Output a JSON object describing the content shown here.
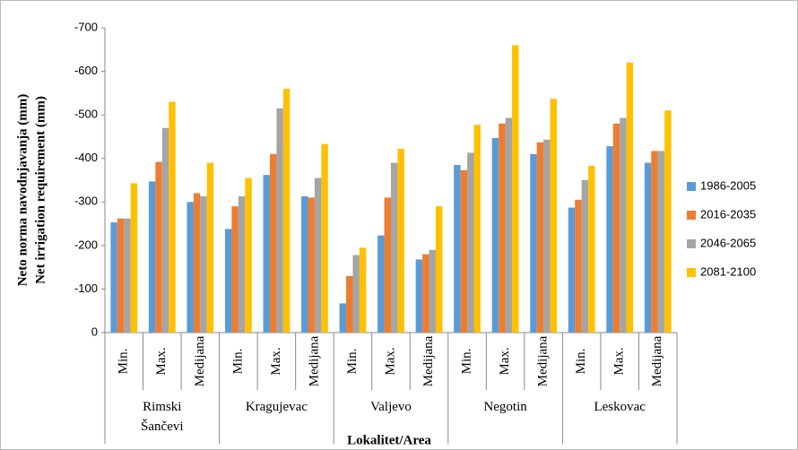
{
  "chart_data": {
    "type": "bar",
    "y_label_lines": [
      "Neto norma navodnjavanja (mm)",
      "Net irrigation requirement  (mm)"
    ],
    "x_label": "Lokalitet/Area",
    "categories": [
      "Min.",
      "Max.",
      "Medijana",
      "Min.",
      "Max.",
      "Medijana",
      "Min.",
      "Max.",
      "Medijana",
      "Min.",
      "Max.",
      "Medijana",
      "Min.",
      "Max.",
      "Medijana"
    ],
    "groups": [
      "Rimski Šančevi",
      "Kragujevac",
      "Valjevo",
      "Negotin",
      "Leskovac"
    ],
    "series": [
      {
        "name": "1986-2005",
        "color": "#5b9bd5",
        "values": [
          -253,
          -347,
          -300,
          -238,
          -362,
          -313,
          -67,
          -223,
          -168,
          -385,
          -447,
          -410,
          -287,
          -428,
          -390
        ]
      },
      {
        "name": "2016-2035",
        "color": "#ed7d31",
        "values": [
          -262,
          -392,
          -320,
          -290,
          -410,
          -310,
          -130,
          -310,
          -180,
          -373,
          -480,
          -437,
          -305,
          -480,
          -417
        ]
      },
      {
        "name": "2046-2065",
        "color": "#a5a5a5",
        "values": [
          -262,
          -470,
          -313,
          -313,
          -515,
          -355,
          -178,
          -390,
          -190,
          -413,
          -493,
          -443,
          -350,
          -493,
          -417
        ]
      },
      {
        "name": "2081-2100",
        "color": "#ffc000",
        "values": [
          -343,
          -530,
          -390,
          -355,
          -560,
          -433,
          -195,
          -422,
          -290,
          -477,
          -660,
          -537,
          -383,
          -620,
          -510
        ]
      }
    ],
    "ylim": [
      0,
      -700
    ],
    "yticks": [
      0,
      -100,
      -200,
      -300,
      -400,
      -500,
      -600,
      -700
    ],
    "legend": "right",
    "grid": false
  }
}
